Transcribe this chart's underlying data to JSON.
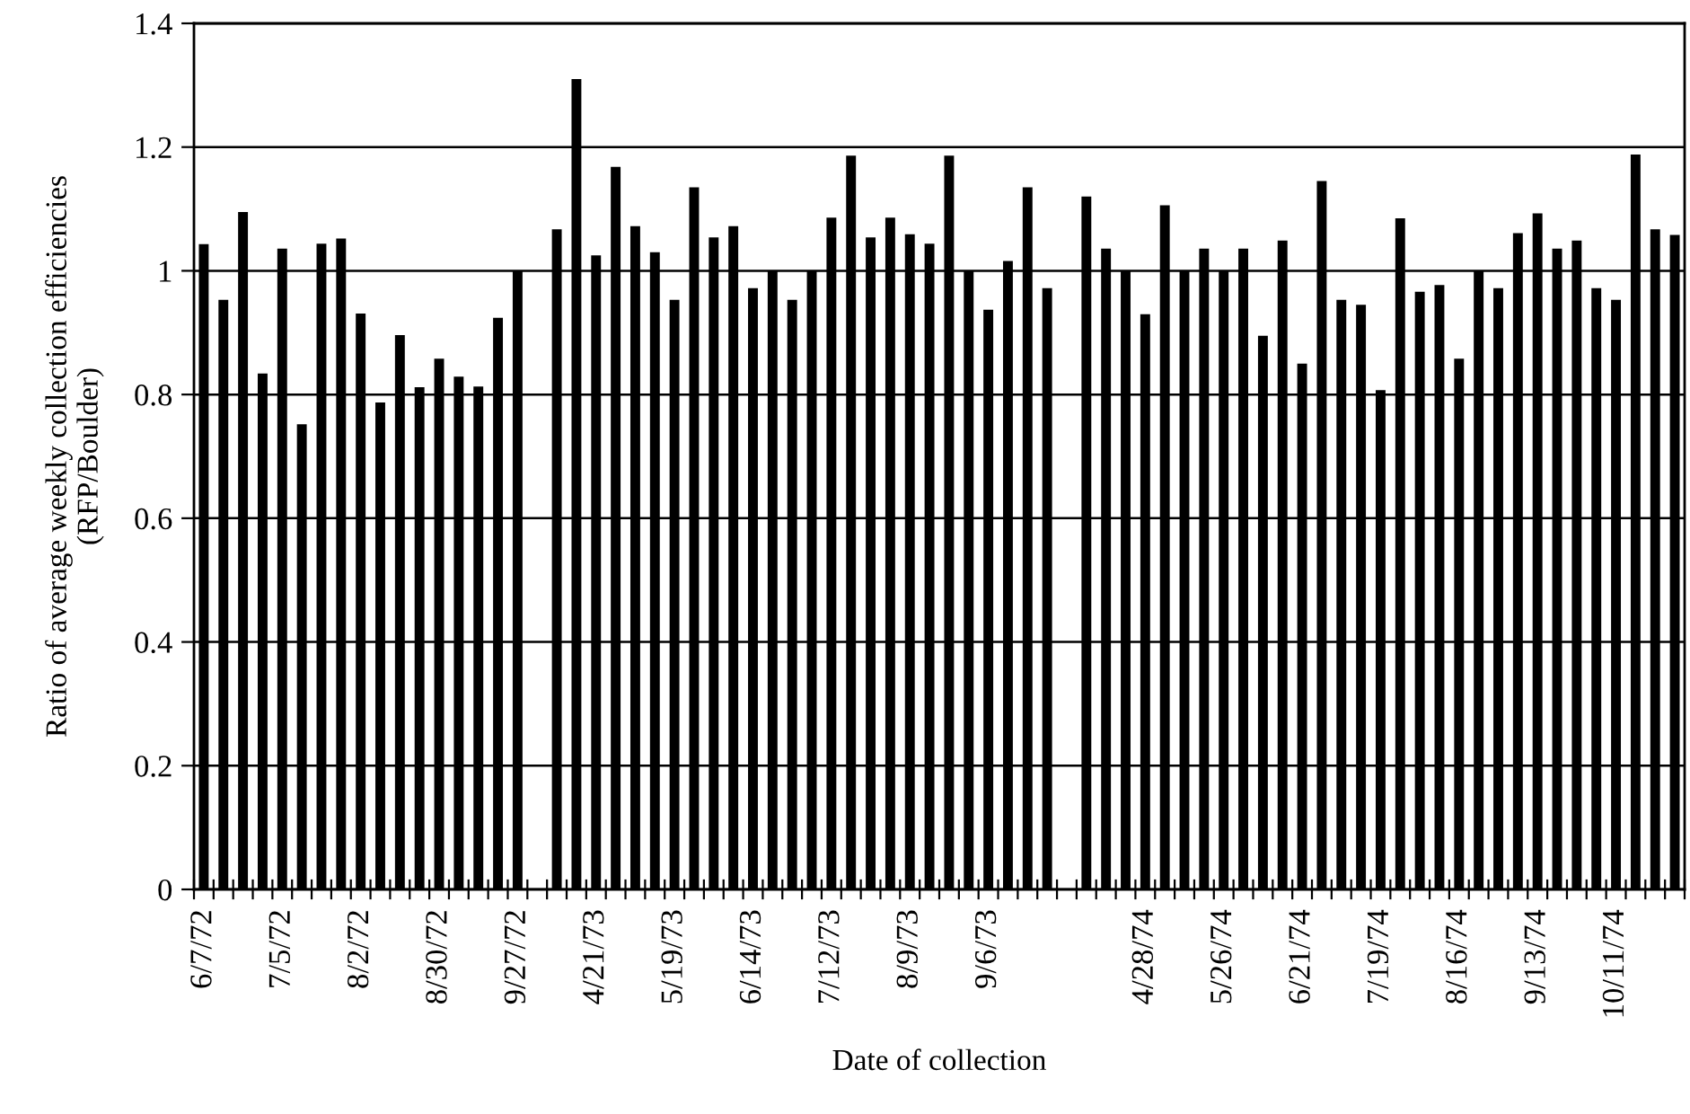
{
  "chart_data": {
    "type": "bar",
    "xlabel": "Date of collection",
    "ylabel": "Ratio of average weekly collection efficiencies\n(RFP/Boulder)",
    "categories": [
      "6/7/72",
      null,
      null,
      null,
      "7/5/72",
      null,
      null,
      null,
      "8/2/72",
      null,
      null,
      null,
      "8/30/72",
      null,
      null,
      null,
      "9/27/72",
      null,
      null,
      null,
      "4/21/73",
      null,
      null,
      null,
      "5/19/73",
      null,
      null,
      null,
      "6/14/73",
      null,
      null,
      null,
      "7/12/73",
      null,
      null,
      null,
      "8/9/73",
      null,
      null,
      null,
      "9/6/73",
      null,
      null,
      null,
      null,
      null,
      null,
      null,
      "4/28/74",
      null,
      null,
      null,
      "5/26/74",
      null,
      null,
      null,
      "6/21/74",
      null,
      null,
      null,
      "7/19/74",
      null,
      null,
      null,
      "8/16/74",
      null,
      null,
      null,
      "9/13/74",
      null,
      null,
      null,
      "10/11/74",
      null,
      null,
      null
    ],
    "values": [
      1.043,
      0.953,
      1.095,
      0.834,
      1.036,
      0.752,
      1.044,
      1.052,
      0.931,
      0.787,
      0.896,
      0.812,
      0.858,
      0.829,
      0.813,
      0.924,
      1.0,
      null,
      1.067,
      1.31,
      1.025,
      1.168,
      1.072,
      1.03,
      0.953,
      1.135,
      1.054,
      1.072,
      0.972,
      1.0,
      0.953,
      1.0,
      1.086,
      1.186,
      1.054,
      1.086,
      1.059,
      1.044,
      1.186,
      1.0,
      0.937,
      1.016,
      1.135,
      0.972,
      null,
      1.12,
      1.036,
      1.0,
      0.93,
      1.106,
      1.0,
      1.036,
      1.0,
      1.036,
      0.895,
      1.049,
      0.85,
      1.145,
      0.953,
      0.945,
      0.807,
      1.085,
      0.966,
      0.977,
      0.858,
      1.0,
      0.972,
      1.061,
      1.093,
      1.036,
      1.049,
      0.972,
      0.953,
      1.188,
      1.067,
      1.058
    ],
    "color": "#000000",
    "ylim": [
      0,
      1.4
    ],
    "yticks": [
      0,
      0.2,
      0.4,
      0.6,
      0.8,
      1,
      1.2,
      1.4
    ],
    "grid": "y",
    "legend": false
  }
}
